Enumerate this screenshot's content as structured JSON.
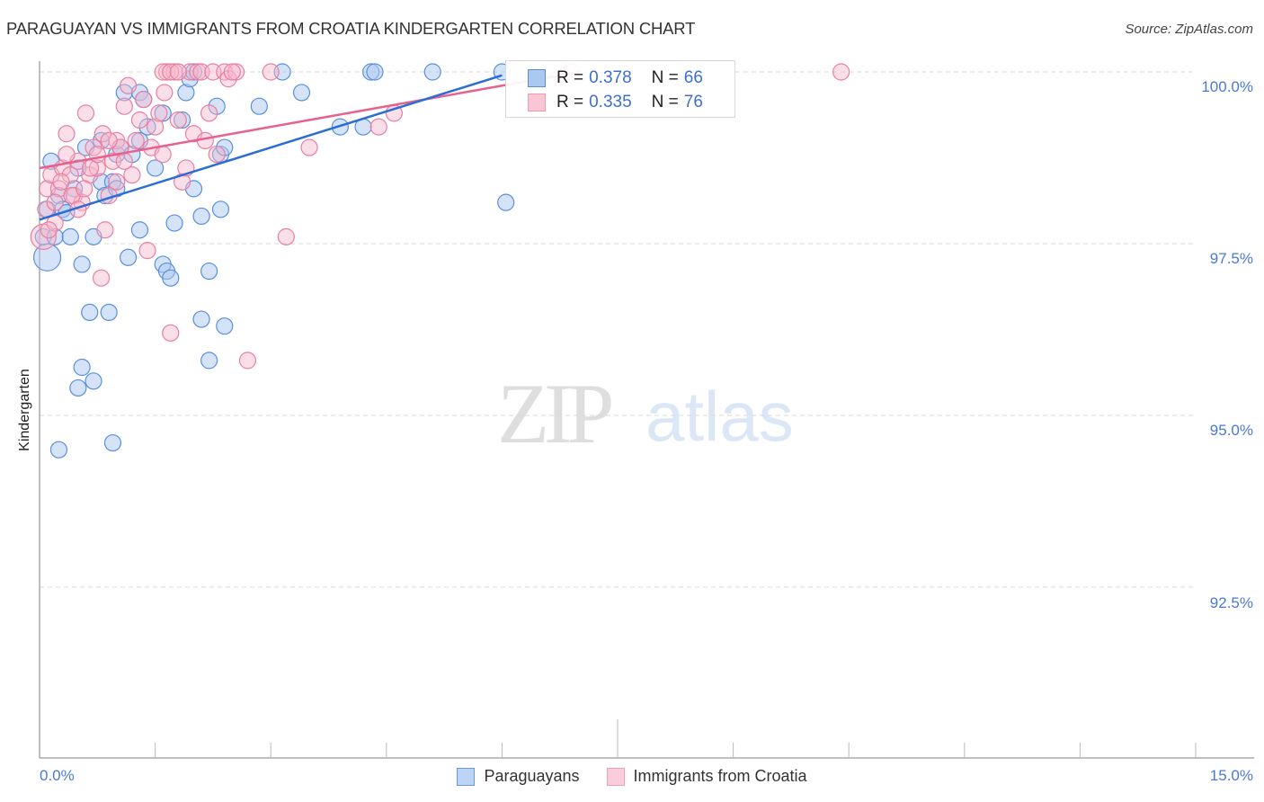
{
  "header": {
    "title": "PARAGUAYAN VS IMMIGRANTS FROM CROATIA KINDERGARTEN CORRELATION CHART",
    "source": "Source: ZipAtlas.com"
  },
  "axes": {
    "ylabel": "Kindergarten",
    "yticks": [
      "100.0%",
      "97.5%",
      "95.0%",
      "92.5%"
    ],
    "xticks": [
      "0.0%",
      "15.0%"
    ]
  },
  "legend": {
    "series1": {
      "r_label": "R =",
      "r_value": "0.378",
      "n_label": "N =",
      "n_value": "66"
    },
    "series2": {
      "r_label": "R =",
      "r_value": "0.335",
      "n_label": "N =",
      "n_value": "76"
    }
  },
  "bottom_legend": {
    "series1": "Paraguayans",
    "series2": "Immigrants from Croatia"
  },
  "watermark": {
    "part1": "ZIP",
    "part2": "atlas"
  },
  "colors": {
    "blue_fill": "#a9c8f2",
    "blue_stroke": "#5a8fdc",
    "blue_line": "#2a6dd4",
    "pink_fill": "#f7b8cc",
    "pink_stroke": "#e97fa1",
    "pink_line": "#e8608b",
    "tick_text": "#4a7bd0"
  },
  "chart_data": {
    "type": "scatter",
    "title": "PARAGUAYAN VS IMMIGRANTS FROM CROATIA KINDERGARTEN CORRELATION CHART",
    "xlabel": "",
    "ylabel": "Kindergarten",
    "xlim": [
      0,
      15
    ],
    "ylim": [
      90.0,
      100.3
    ],
    "x_tick_labels": [
      "0.0%",
      "15.0%"
    ],
    "y_tick_labels": [
      "92.5%",
      "95.0%",
      "97.5%",
      "100.0%"
    ],
    "grid": "horizontal dashed",
    "legend_position": "top-center inset + bottom",
    "series": [
      {
        "name": "Paraguayans",
        "R": 0.378,
        "N": 66,
        "trend": {
          "x": [
            0.0,
            6.0
          ],
          "y": [
            97.85,
            99.95
          ]
        },
        "points": [
          [
            0.1,
            97.3
          ],
          [
            0.05,
            97.6
          ],
          [
            0.1,
            98.0
          ],
          [
            0.15,
            98.7
          ],
          [
            0.2,
            97.6
          ],
          [
            0.25,
            98.2
          ],
          [
            0.3,
            98.0
          ],
          [
            0.35,
            97.95
          ],
          [
            0.4,
            97.6
          ],
          [
            0.45,
            98.3
          ],
          [
            0.5,
            98.6
          ],
          [
            0.55,
            97.2
          ],
          [
            0.6,
            98.9
          ],
          [
            0.65,
            96.5
          ],
          [
            0.7,
            97.6
          ],
          [
            0.8,
            98.4
          ],
          [
            0.8,
            99.0
          ],
          [
            0.85,
            98.2
          ],
          [
            0.9,
            96.5
          ],
          [
            0.95,
            98.4
          ],
          [
            1.0,
            98.3
          ],
          [
            1.0,
            98.8
          ],
          [
            1.05,
            98.9
          ],
          [
            1.1,
            99.7
          ],
          [
            1.15,
            97.3
          ],
          [
            1.2,
            98.8
          ],
          [
            1.3,
            99.0
          ],
          [
            1.3,
            99.7
          ],
          [
            1.35,
            99.6
          ],
          [
            1.4,
            99.2
          ],
          [
            1.5,
            98.6
          ],
          [
            1.6,
            99.4
          ],
          [
            1.6,
            97.2
          ],
          [
            1.65,
            97.1
          ],
          [
            1.7,
            97.0
          ],
          [
            1.75,
            97.8
          ],
          [
            1.85,
            99.3
          ],
          [
            1.9,
            99.7
          ],
          [
            1.95,
            99.9
          ],
          [
            2.0,
            100.0
          ],
          [
            2.0,
            98.3
          ],
          [
            2.1,
            96.4
          ],
          [
            2.1,
            97.9
          ],
          [
            2.2,
            97.1
          ],
          [
            2.2,
            95.8
          ],
          [
            2.3,
            99.5
          ],
          [
            2.35,
            98.8
          ],
          [
            2.4,
            98.9
          ],
          [
            2.4,
            96.3
          ],
          [
            2.35,
            98.0
          ],
          [
            2.85,
            99.5
          ],
          [
            3.15,
            100.0
          ],
          [
            3.4,
            99.7
          ],
          [
            3.9,
            99.2
          ],
          [
            4.2,
            99.2
          ],
          [
            4.3,
            100.0
          ],
          [
            4.35,
            100.0
          ],
          [
            5.1,
            100.0
          ],
          [
            6.0,
            100.0
          ],
          [
            6.05,
            98.1
          ],
          [
            0.25,
            94.5
          ],
          [
            0.55,
            95.7
          ],
          [
            0.5,
            95.4
          ],
          [
            0.7,
            95.5
          ],
          [
            0.95,
            94.6
          ],
          [
            1.3,
            97.7
          ]
        ]
      },
      {
        "name": "Immigrants from Croatia",
        "R": 0.335,
        "N": 76,
        "trend": {
          "x": [
            0.0,
            7.0
          ],
          "y": [
            98.6,
            100.0
          ]
        },
        "points": [
          [
            0.05,
            97.6
          ],
          [
            0.1,
            98.3
          ],
          [
            0.15,
            98.5
          ],
          [
            0.2,
            97.8
          ],
          [
            0.25,
            98.3
          ],
          [
            0.3,
            98.6
          ],
          [
            0.35,
            99.1
          ],
          [
            0.4,
            98.5
          ],
          [
            0.45,
            98.2
          ],
          [
            0.5,
            98.7
          ],
          [
            0.55,
            98.1
          ],
          [
            0.6,
            99.4
          ],
          [
            0.65,
            98.5
          ],
          [
            0.7,
            98.9
          ],
          [
            0.75,
            98.6
          ],
          [
            0.8,
            97.0
          ],
          [
            0.85,
            97.7
          ],
          [
            0.9,
            98.2
          ],
          [
            0.95,
            98.7
          ],
          [
            1.0,
            99.0
          ],
          [
            1.05,
            98.9
          ],
          [
            1.1,
            99.5
          ],
          [
            1.15,
            99.8
          ],
          [
            1.2,
            98.5
          ],
          [
            1.25,
            99.0
          ],
          [
            1.3,
            99.3
          ],
          [
            1.35,
            99.6
          ],
          [
            1.4,
            97.4
          ],
          [
            1.45,
            98.9
          ],
          [
            1.5,
            99.2
          ],
          [
            1.55,
            99.4
          ],
          [
            1.6,
            98.8
          ],
          [
            1.65,
            100.0
          ],
          [
            1.7,
            96.2
          ],
          [
            1.75,
            100.0
          ],
          [
            1.8,
            99.3
          ],
          [
            1.85,
            98.4
          ],
          [
            1.9,
            98.6
          ],
          [
            1.95,
            100.0
          ],
          [
            2.0,
            99.1
          ],
          [
            2.05,
            100.0
          ],
          [
            2.1,
            100.0
          ],
          [
            2.15,
            99.0
          ],
          [
            2.2,
            99.4
          ],
          [
            2.25,
            100.0
          ],
          [
            2.3,
            98.8
          ],
          [
            2.4,
            100.0
          ],
          [
            2.45,
            99.9
          ],
          [
            2.55,
            100.0
          ],
          [
            2.7,
            95.8
          ],
          [
            3.0,
            100.0
          ],
          [
            3.2,
            97.6
          ],
          [
            3.5,
            98.9
          ],
          [
            4.4,
            99.2
          ],
          [
            4.6,
            99.4
          ],
          [
            10.4,
            100.0
          ],
          [
            0.08,
            98.0
          ],
          [
            0.12,
            97.7
          ],
          [
            0.2,
            98.1
          ],
          [
            0.28,
            98.4
          ],
          [
            0.35,
            98.8
          ],
          [
            0.42,
            98.2
          ],
          [
            0.5,
            98.0
          ],
          [
            0.58,
            98.3
          ],
          [
            0.66,
            98.6
          ],
          [
            0.75,
            98.8
          ],
          [
            0.82,
            99.1
          ],
          [
            0.9,
            99.0
          ],
          [
            1.0,
            98.4
          ],
          [
            1.1,
            98.7
          ],
          [
            1.6,
            100.0
          ],
          [
            1.7,
            100.0
          ],
          [
            1.8,
            100.0
          ],
          [
            1.62,
            99.7
          ],
          [
            2.5,
            100.0
          ],
          [
            6.9,
            100.0
          ]
        ]
      }
    ]
  }
}
